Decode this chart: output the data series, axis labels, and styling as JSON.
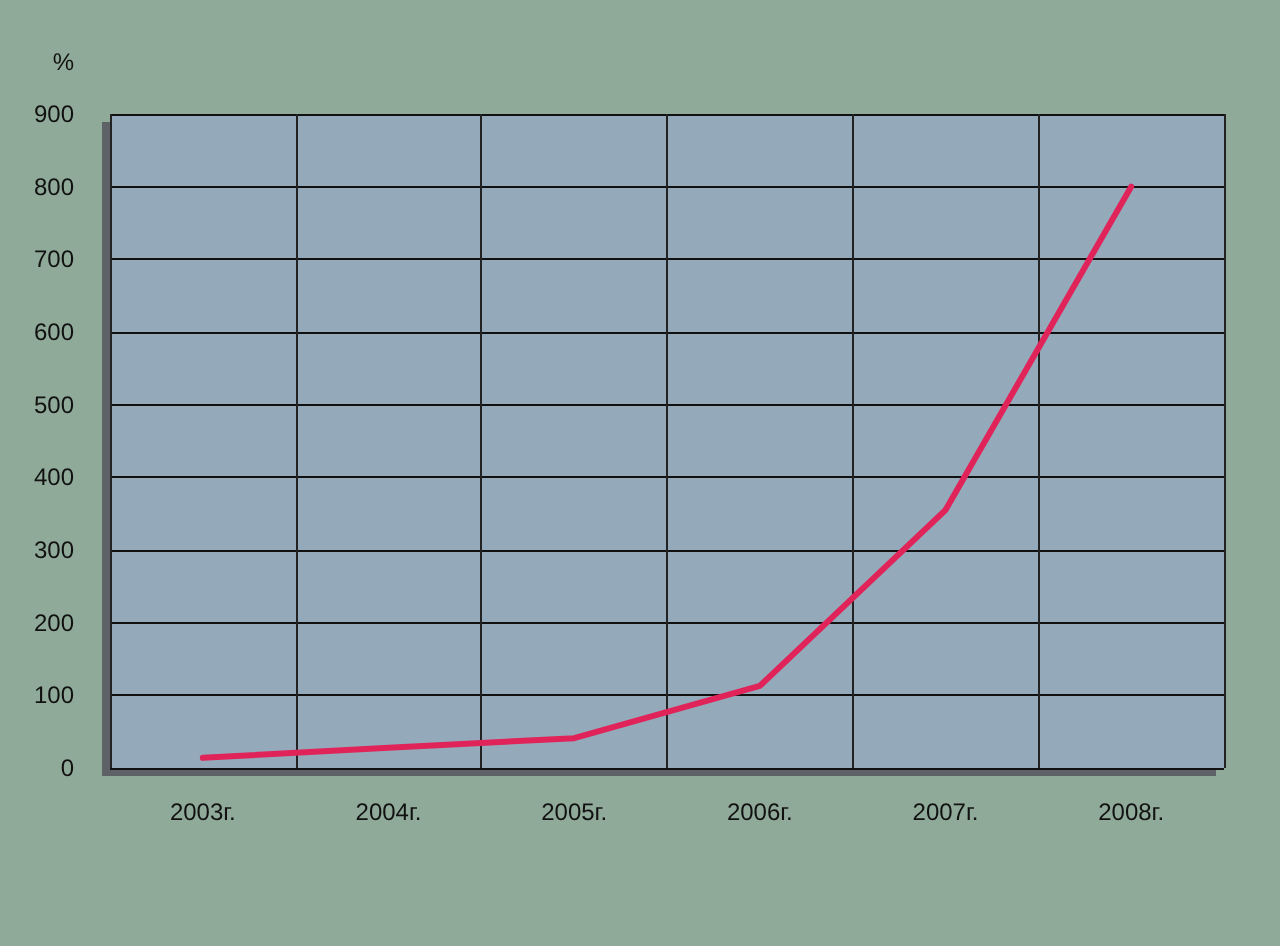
{
  "chart_data": {
    "type": "line",
    "ylabel": "%",
    "categories": [
      "2003г.",
      "2004г.",
      "2005г.",
      "2006г.",
      "2007г.",
      "2008г."
    ],
    "series": [
      {
        "color": "#e0245a",
        "values": [
          14,
          28,
          41,
          113,
          355,
          800
        ]
      }
    ],
    "ylim": [
      0,
      900
    ],
    "yticks": [
      0,
      100,
      200,
      300,
      400,
      500,
      600,
      700,
      800,
      900
    ],
    "grid": true,
    "marker": "none",
    "line_style": "solid"
  }
}
